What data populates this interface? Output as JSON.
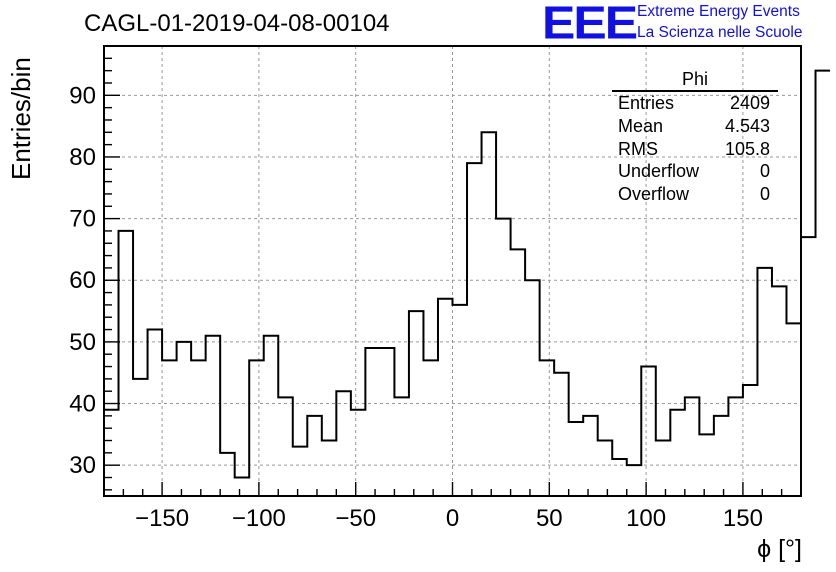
{
  "header": {
    "title": "CAGL-01-2019-04-08-00104",
    "logo_mark": "EEE",
    "logo_line1": "Extreme Energy Events",
    "logo_line2": "La Scienza nelle Scuole"
  },
  "stats": {
    "name": "Phi",
    "rows": [
      {
        "label": "Entries",
        "value": "2409"
      },
      {
        "label": "Mean",
        "value": "4.543"
      },
      {
        "label": "RMS",
        "value": "105.8"
      },
      {
        "label": "Underflow",
        "value": "0"
      },
      {
        "label": "Overflow",
        "value": "0"
      }
    ]
  },
  "chart_data": {
    "type": "histogram-step",
    "title": "CAGL-01-2019-04-08-00104",
    "xlabel": "ϕ [°]",
    "ylabel": "Entries/bin",
    "xlim": [
      -180,
      180
    ],
    "ylim": [
      25,
      98
    ],
    "bin_edges_start": -180,
    "bin_width": 7.5,
    "values": [
      39,
      68,
      44,
      52,
      47,
      50,
      47,
      51,
      32,
      28,
      47,
      51,
      41,
      33,
      38,
      34,
      42,
      39,
      49,
      49,
      41,
      55,
      47,
      57,
      56,
      79,
      84,
      70,
      65,
      60,
      47,
      45,
      37,
      38,
      34,
      31,
      30,
      46,
      34,
      39,
      41,
      35,
      38,
      41,
      43,
      62,
      59,
      53,
      67,
      94
    ],
    "x_ticks": [
      -150,
      -100,
      -50,
      0,
      50,
      100,
      150
    ],
    "x_tick_labels": [
      "−150",
      "−100",
      "−50",
      "0",
      "50",
      "100",
      "150"
    ],
    "y_ticks": [
      30,
      40,
      50,
      60,
      70,
      80,
      90
    ],
    "y_tick_labels": [
      "30",
      "40",
      "50",
      "60",
      "70",
      "80",
      "90"
    ],
    "grid": true,
    "legend": "top-right stats box"
  }
}
